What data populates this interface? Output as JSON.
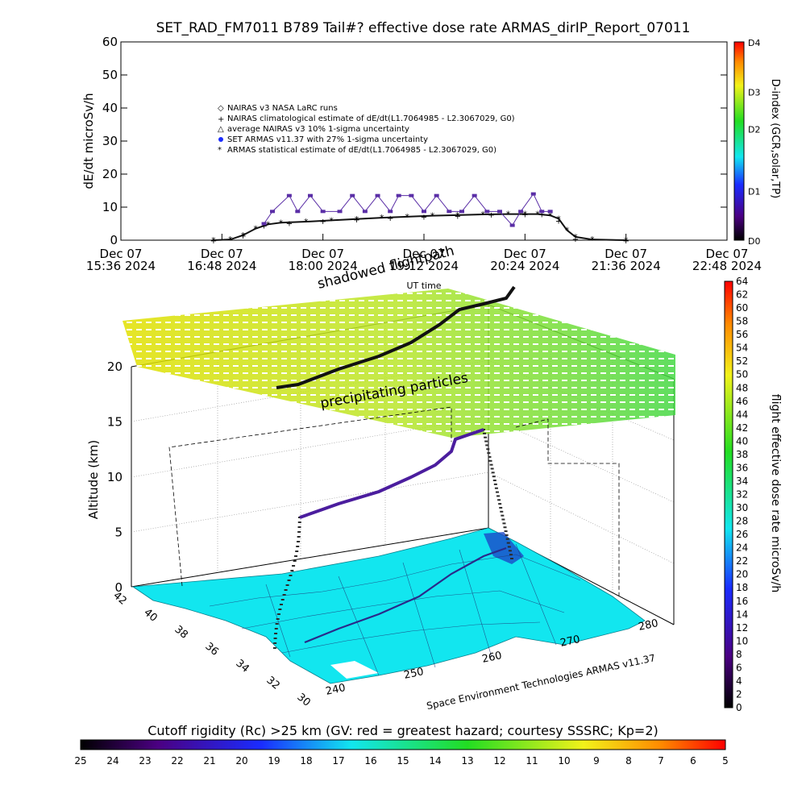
{
  "title": "SET_RAD_FM7011  B789 Tail#? effective dose rate ARMAS_dirIP_Report_07011",
  "chart_data": [
    {
      "type": "scatter",
      "panel": "dose-rate-time-series",
      "ylabel": "dE/dt microSv/h",
      "xlabel": "UT time",
      "ylim": [
        0,
        60
      ],
      "yticks": [
        "0",
        "10",
        "20",
        "30",
        "40",
        "50",
        "60"
      ],
      "x_tick_labels": [
        {
          "l1": "Dec 07",
          "l2": "15:36 2024"
        },
        {
          "l1": "Dec 07",
          "l2": "16:48 2024"
        },
        {
          "l1": "Dec 07",
          "l2": "18:00 2024"
        },
        {
          "l1": "Dec 07",
          "l2": "19:12 2024"
        },
        {
          "l1": "Dec 07",
          "l2": "20:24 2024"
        },
        {
          "l1": "Dec 07",
          "l2": "21:36 2024"
        },
        {
          "l1": "Dec 07",
          "l2": "22:48 2024"
        }
      ],
      "xlim_hours": [
        15.6,
        22.8
      ],
      "legend_position": "upper-left",
      "legend": [
        "NAIRAS v3 NASA LaRC runs",
        "NAIRAS climatological estimate of dE/dt(L1.7064985 - L2.3067029, G0)",
        "average NAIRAS v3 10% 1-sigma uncertainty",
        "SET ARMAS v11.37 with 27% 1-sigma uncertainty",
        "ARMAS statistical estimate of dE/dt(L1.7064985 - L2.3067029, G0)"
      ],
      "annotations": [
        "shadowed flightpath"
      ],
      "series": [
        {
          "name": "ARMAS statistical estimate of dE/dt(L1.7064985 - L2.3067029, G0)",
          "x": [
            16.7,
            16.9,
            17.05,
            17.2,
            17.35,
            17.5,
            17.8,
            18.1,
            18.4,
            18.7,
            19.0,
            19.3,
            19.6,
            19.9,
            20.2,
            20.4,
            20.55,
            20.7,
            20.8,
            20.9,
            21.0,
            21.2,
            21.6
          ],
          "y": [
            0.0,
            0.2,
            1.5,
            3.5,
            4.8,
            5.3,
            5.6,
            6.0,
            6.4,
            6.8,
            7.1,
            7.4,
            7.6,
            7.8,
            7.9,
            7.9,
            7.9,
            7.5,
            6.5,
            3.0,
            1.0,
            0.2,
            0.0
          ]
        },
        {
          "name": "SET ARMAS v11.37 with 27% 1-sigma uncertainty",
          "x": [
            17.3,
            17.4,
            17.6,
            17.7,
            17.85,
            18.0,
            18.2,
            18.35,
            18.5,
            18.65,
            18.8,
            18.9,
            19.05,
            19.2,
            19.35,
            19.5,
            19.65,
            19.8,
            19.95,
            20.1,
            20.25,
            20.35,
            20.5,
            20.6,
            20.7
          ],
          "y": [
            5.0,
            8.7,
            13.5,
            8.7,
            13.5,
            8.7,
            8.7,
            13.5,
            8.7,
            13.5,
            8.7,
            13.5,
            13.5,
            8.7,
            13.5,
            8.7,
            8.7,
            13.5,
            8.7,
            8.7,
            4.5,
            8.7,
            14.0,
            8.7,
            8.7
          ]
        },
        {
          "name": "NAIRAS climatological estimate of dE/dt(L1.7064985 - L2.3067029, G0)",
          "x": [
            16.7,
            17.05,
            17.3,
            17.6,
            18.0,
            18.4,
            18.8,
            19.2,
            19.6,
            20.0,
            20.4,
            20.6,
            20.8,
            21.0,
            21.6
          ],
          "y": [
            0.0,
            1.5,
            4.5,
            5.3,
            5.8,
            6.3,
            6.8,
            7.2,
            7.5,
            7.8,
            7.9,
            7.9,
            6.0,
            0.5,
            0.0
          ]
        }
      ]
    },
    {
      "type": "scatter",
      "panel": "3d-flight-track",
      "zlabel": "Altitude (km)",
      "zticks": [
        "0",
        "5",
        "10",
        "15",
        "20"
      ],
      "zlim": [
        0,
        20
      ],
      "lat_ticks": [
        "42",
        "40",
        "38",
        "36",
        "34",
        "32",
        "30"
      ],
      "lon_ticks": [
        "240",
        "250",
        "260",
        "270",
        "280"
      ],
      "annotations": [
        "precipitating particles",
        "Space Environment Technologies ARMAS v11.37"
      ],
      "colorbar": {
        "label": "flight effective dose rate microSv/h",
        "ticks": [
          "0",
          "2",
          "4",
          "6",
          "8",
          "10",
          "12",
          "14",
          "16",
          "18",
          "20",
          "22",
          "24",
          "26",
          "28",
          "30",
          "32",
          "34",
          "36",
          "38",
          "40",
          "42",
          "44",
          "46",
          "48",
          "50",
          "52",
          "54",
          "56",
          "58",
          "60",
          "62",
          "64"
        ],
        "range": [
          0,
          64
        ]
      }
    },
    {
      "type": "heatmap",
      "panel": "cutoff-rigidity-colorbar",
      "title": "Cutoff rigidity (Rc) >25 km (GV: red = greatest hazard; courtesy SSSRC; Kp=2)",
      "ticks": [
        "25",
        "24",
        "23",
        "22",
        "21",
        "20",
        "19",
        "18",
        "17",
        "16",
        "15",
        "14",
        "13",
        "12",
        "11",
        "10",
        "9",
        "8",
        "7",
        "6",
        "5"
      ]
    }
  ],
  "d_index_bar": {
    "label": "D-index (GCR,solar,TP)",
    "ticks": [
      {
        "t": "D4",
        "v": 4.0
      },
      {
        "t": "D3",
        "v": 3.0
      },
      {
        "t": "D2",
        "v": 2.25
      },
      {
        "t": "D1",
        "v": 1.0
      },
      {
        "t": "D0",
        "v": 0.0
      }
    ]
  },
  "colors": {
    "map_fill": "#12e6ef",
    "track": "#3a1f8c",
    "track_upper": "#111111",
    "marker_purple": "#5a2ea6"
  }
}
